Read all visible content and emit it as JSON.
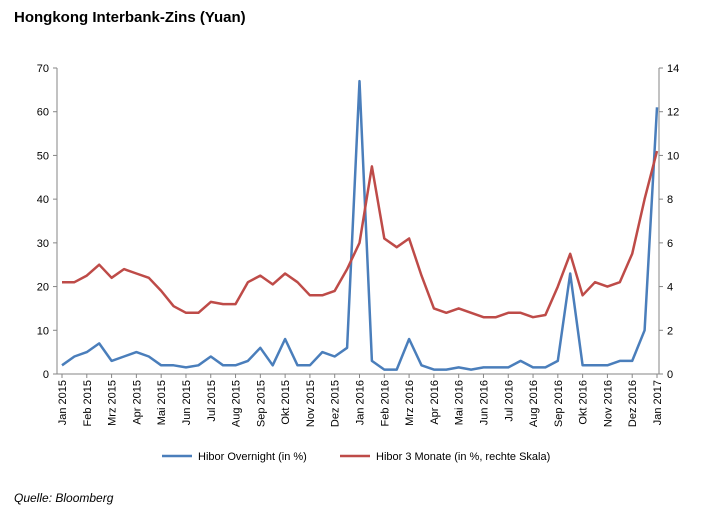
{
  "chart_data": {
    "type": "line",
    "title": "Hongkong Interbank-Zins (Yuan)",
    "source": "Quelle: Bloomberg",
    "categories": [
      "Jan 2015",
      null,
      "Feb 2015",
      null,
      "Mrz 2015",
      null,
      "Apr 2015",
      null,
      "Mai 2015",
      null,
      "Jun 2015",
      null,
      "Jul 2015",
      null,
      "Aug 2015",
      null,
      "Sep 2015",
      null,
      "Okt 2015",
      null,
      "Nov 2015",
      null,
      "Dez 2015",
      null,
      "Jan 2016",
      null,
      "Feb 2016",
      null,
      "Mrz 2016",
      null,
      "Apr 2016",
      null,
      "Mai 2016",
      null,
      "Jun 2016",
      null,
      "Jul 2016",
      null,
      "Aug 2016",
      null,
      "Sep 2016",
      null,
      "Okt 2016",
      null,
      "Nov 2016",
      null,
      "Dez 2016",
      null,
      "Jan 2017"
    ],
    "series": [
      {
        "name": "Hibor Overnight (in %)",
        "color": "#4a7ebb",
        "axis": "y",
        "values": [
          2,
          4,
          5,
          7,
          3,
          4,
          5,
          4,
          2,
          2,
          1.5,
          2,
          4,
          2,
          2,
          3,
          6,
          2,
          8,
          2,
          2,
          5,
          4,
          6,
          67,
          3,
          1,
          1,
          8,
          2,
          1,
          1,
          1.5,
          1,
          1.5,
          1.5,
          1.5,
          3,
          1.5,
          1.5,
          3,
          23,
          2,
          2,
          2,
          3,
          3,
          10,
          61
        ]
      },
      {
        "name": "Hibor 3 Monate (in %, rechte Skala)",
        "color": "#be4b48",
        "axis": "y2",
        "values": [
          4.2,
          4.2,
          4.5,
          5.0,
          4.4,
          4.8,
          4.6,
          4.4,
          3.8,
          3.1,
          2.8,
          2.8,
          3.3,
          3.2,
          3.2,
          4.2,
          4.5,
          4.1,
          4.6,
          4.2,
          3.6,
          3.6,
          3.8,
          4.8,
          6.0,
          9.5,
          6.2,
          5.8,
          6.2,
          4.5,
          3.0,
          2.8,
          3.0,
          2.8,
          2.6,
          2.6,
          2.8,
          2.8,
          2.6,
          2.7,
          4.0,
          5.5,
          3.6,
          4.2,
          4.0,
          4.2,
          5.5,
          8.0,
          10.2
        ]
      }
    ],
    "ylim": [
      0,
      70
    ],
    "yticks": [
      0,
      10,
      20,
      30,
      40,
      50,
      60,
      70
    ],
    "y2lim": [
      0,
      14
    ],
    "y2ticks": [
      0,
      2,
      4,
      6,
      8,
      10,
      12,
      14
    ],
    "legend": "bottom",
    "grid": false
  }
}
